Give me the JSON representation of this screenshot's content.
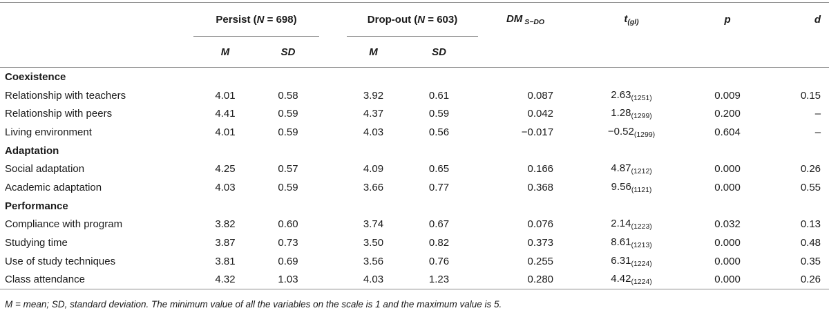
{
  "header": {
    "persist": {
      "label": "Persist (",
      "n_symbol": "N",
      "n_value": " = 698)"
    },
    "dropout": {
      "label": "Drop-out (",
      "n_symbol": "N",
      "n_value": " = 603)"
    },
    "dm": {
      "main": "DM",
      "sub": " S−DO"
    },
    "t": {
      "main": "t",
      "sub": "(gl)"
    },
    "p": "p",
    "d": "d",
    "m": "M",
    "sd": "SD"
  },
  "sections": [
    {
      "title": "Coexistence",
      "rows": [
        {
          "label": "Relationship with teachers",
          "pm": "4.01",
          "psd": "0.58",
          "dm_": "3.92",
          "dsd": "0.61",
          "diff": "0.087",
          "t": "2.63",
          "gl": "(1251)",
          "p": "0.009",
          "d": "0.15"
        },
        {
          "label": "Relationship with peers",
          "pm": "4.41",
          "psd": "0.59",
          "dm_": "4.37",
          "dsd": "0.59",
          "diff": "0.042",
          "t": "1.28",
          "gl": "(1299)",
          "p": "0.200",
          "d": "–"
        },
        {
          "label": "Living environment",
          "pm": "4.01",
          "psd": "0.59",
          "dm_": "4.03",
          "dsd": "0.56",
          "diff": "−0.017",
          "t": "−0.52",
          "gl": "(1299)",
          "p": "0.604",
          "d": "–"
        }
      ]
    },
    {
      "title": "Adaptation",
      "rows": [
        {
          "label": "Social adaptation",
          "pm": "4.25",
          "psd": "0.57",
          "dm_": "4.09",
          "dsd": "0.65",
          "diff": "0.166",
          "t": "4.87",
          "gl": "(1212)",
          "p": "0.000",
          "d": "0.26"
        },
        {
          "label": "Academic adaptation",
          "pm": "4.03",
          "psd": "0.59",
          "dm_": "3.66",
          "dsd": "0.77",
          "diff": "0.368",
          "t": "9.56",
          "gl": "(1121)",
          "p": "0.000",
          "d": "0.55"
        }
      ]
    },
    {
      "title": "Performance",
      "rows": [
        {
          "label": "Compliance with program",
          "pm": "3.82",
          "psd": "0.60",
          "dm_": "3.74",
          "dsd": "0.67",
          "diff": "0.076",
          "t": "2.14",
          "gl": "(1223)",
          "p": "0.032",
          "d": "0.13"
        },
        {
          "label": "Studying time",
          "pm": "3.87",
          "psd": "0.73",
          "dm_": "3.50",
          "dsd": "0.82",
          "diff": "0.373",
          "t": "8.61",
          "gl": "(1213)",
          "p": "0.000",
          "d": "0.48"
        },
        {
          "label": "Use of study techniques",
          "pm": "3.81",
          "psd": "0.69",
          "dm_": "3.56",
          "dsd": "0.76",
          "diff": "0.255",
          "t": "6.31",
          "gl": "(1224)",
          "p": "0.000",
          "d": "0.35"
        },
        {
          "label": "Class attendance",
          "pm": "4.32",
          "psd": "1.03",
          "dm_": "4.03",
          "dsd": "1.23",
          "diff": "0.280",
          "t": "4.42",
          "gl": "(1224)",
          "p": "0.000",
          "d": "0.26"
        }
      ]
    }
  ],
  "footnote": "M = mean; SD, standard deviation. The minimum value of all the variables on the scale is 1 and the maximum value is 5."
}
